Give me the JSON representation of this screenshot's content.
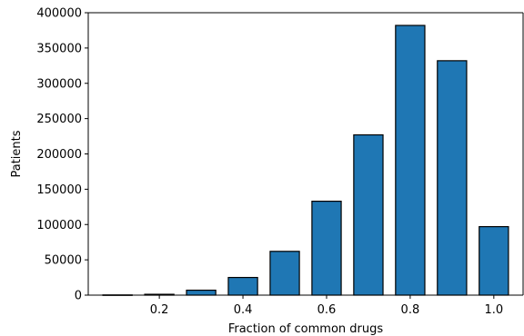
{
  "chart_data": {
    "type": "bar",
    "title": "",
    "xlabel": "Fraction of common drugs",
    "ylabel": "Patients",
    "x": [
      0.1,
      0.2,
      0.3,
      0.4,
      0.5,
      0.6,
      0.7,
      0.8,
      0.9,
      1.0
    ],
    "values": [
      300,
      1200,
      7000,
      25000,
      62000,
      133000,
      227000,
      382000,
      332000,
      97000
    ],
    "bar_width": 0.07,
    "xlim": [
      0.03,
      1.07
    ],
    "ylim": [
      0,
      400000
    ],
    "xticks": [
      0.2,
      0.4,
      0.6,
      0.8,
      1.0
    ],
    "xtick_labels": [
      "0.2",
      "0.4",
      "0.6",
      "0.8",
      "1.0"
    ],
    "yticks": [
      0,
      50000,
      100000,
      150000,
      200000,
      250000,
      300000,
      350000,
      400000
    ],
    "ytick_labels": [
      "0",
      "50000",
      "100000",
      "150000",
      "200000",
      "250000",
      "300000",
      "350000",
      "400000"
    ],
    "grid": false,
    "bar_color": "#1f77b4",
    "edge_color": "#000000"
  }
}
